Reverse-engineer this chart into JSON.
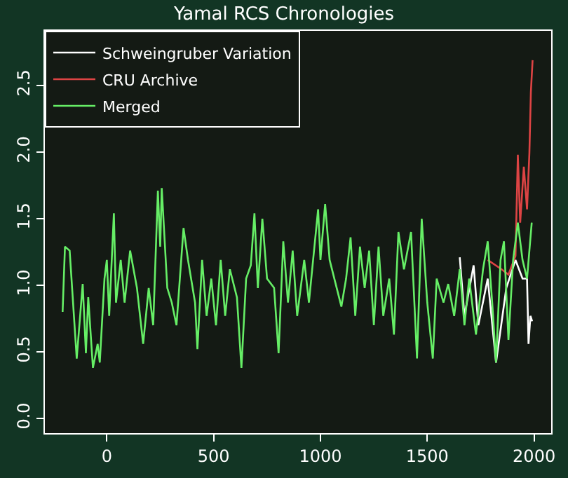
{
  "chart_data": {
    "type": "line",
    "title": "Yamal RCS Chronologies",
    "xlim": [
      -290,
      2080
    ],
    "ylim": [
      -0.11,
      2.91
    ],
    "xticks": [
      0,
      500,
      1000,
      1500,
      2000
    ],
    "yticks": [
      {
        "value": 0,
        "label": "0.0"
      },
      {
        "value": 0.5,
        "label": "0.5"
      },
      {
        "value": 1,
        "label": "1.0"
      },
      {
        "value": 1.5,
        "label": "1.5"
      },
      {
        "value": 2,
        "label": "2.0"
      },
      {
        "value": 2.5,
        "label": "2.5"
      }
    ],
    "grid": false,
    "legend": "top left",
    "marker": "none",
    "line_style": "solid",
    "series": [
      {
        "name": "Schweingruber Variation",
        "color": "#ffffff",
        "x": [
          1652,
          1674,
          1717,
          1739,
          1783,
          1822,
          1870,
          1913,
          1946,
          1967,
          1974,
          1983,
          1991
        ],
        "values": [
          1.21,
          0.77,
          1.15,
          0.7,
          1.05,
          0.42,
          0.98,
          1.19,
          1.05,
          1.05,
          0.56,
          0.77,
          0.73
        ]
      },
      {
        "name": "CRU Archive",
        "color": "#dd4444",
        "x": [
          1783,
          1848,
          1880,
          1913,
          1924,
          1935,
          1952,
          1967,
          1978,
          1985,
          1993
        ],
        "values": [
          1.19,
          1.12,
          1.08,
          1.22,
          1.98,
          1.47,
          1.89,
          1.57,
          1.99,
          2.45,
          2.69
        ]
      },
      {
        "name": "Merged",
        "color": "#66ee66",
        "x": [
          -207,
          -196,
          -174,
          -141,
          -113,
          -98,
          -87,
          -65,
          -43,
          -33,
          -11,
          0,
          11,
          33,
          43,
          65,
          83,
          109,
          141,
          170,
          196,
          217,
          239,
          250,
          257,
          283,
          304,
          326,
          359,
          380,
          413,
          424,
          446,
          467,
          489,
          511,
          533,
          554,
          576,
          609,
          630,
          652,
          674,
          691,
          707,
          728,
          750,
          783,
          804,
          826,
          848,
          870,
          891,
          924,
          946,
          989,
          1000,
          1022,
          1043,
          1076,
          1098,
          1120,
          1141,
          1163,
          1185,
          1207,
          1228,
          1250,
          1272,
          1294,
          1322,
          1344,
          1365,
          1391,
          1424,
          1452,
          1474,
          1500,
          1526,
          1544,
          1576,
          1598,
          1626,
          1652,
          1674,
          1696,
          1728,
          1761,
          1783,
          1804,
          1822,
          1843,
          1859,
          1880,
          1902,
          1924,
          1946,
          1967,
          1989
        ],
        "values": [
          0.8,
          1.29,
          1.26,
          0.45,
          1.01,
          0.49,
          0.91,
          0.38,
          0.56,
          0.42,
          1.05,
          1.19,
          0.77,
          1.54,
          0.87,
          1.19,
          0.87,
          1.26,
          0.98,
          0.56,
          0.98,
          0.7,
          1.71,
          1.29,
          1.73,
          0.98,
          0.87,
          0.7,
          1.43,
          1.19,
          0.87,
          0.52,
          1.19,
          0.77,
          1.05,
          0.7,
          1.19,
          0.77,
          1.12,
          0.91,
          0.38,
          1.05,
          1.15,
          1.54,
          0.98,
          1.5,
          1.05,
          0.98,
          0.49,
          1.33,
          0.87,
          1.26,
          0.77,
          1.19,
          0.87,
          1.57,
          1.19,
          1.61,
          1.19,
          0.98,
          0.84,
          1.05,
          1.36,
          0.77,
          1.29,
          0.98,
          1.26,
          0.7,
          1.29,
          0.77,
          1.05,
          0.63,
          1.4,
          1.12,
          1.4,
          0.45,
          1.5,
          0.87,
          0.45,
          1.05,
          0.87,
          1.01,
          0.77,
          1.12,
          0.7,
          1.05,
          0.63,
          1.12,
          1.33,
          0.87,
          0.42,
          1.19,
          1.33,
          0.59,
          1.19,
          1.47,
          1.19,
          1.05,
          1.47
        ]
      }
    ]
  }
}
